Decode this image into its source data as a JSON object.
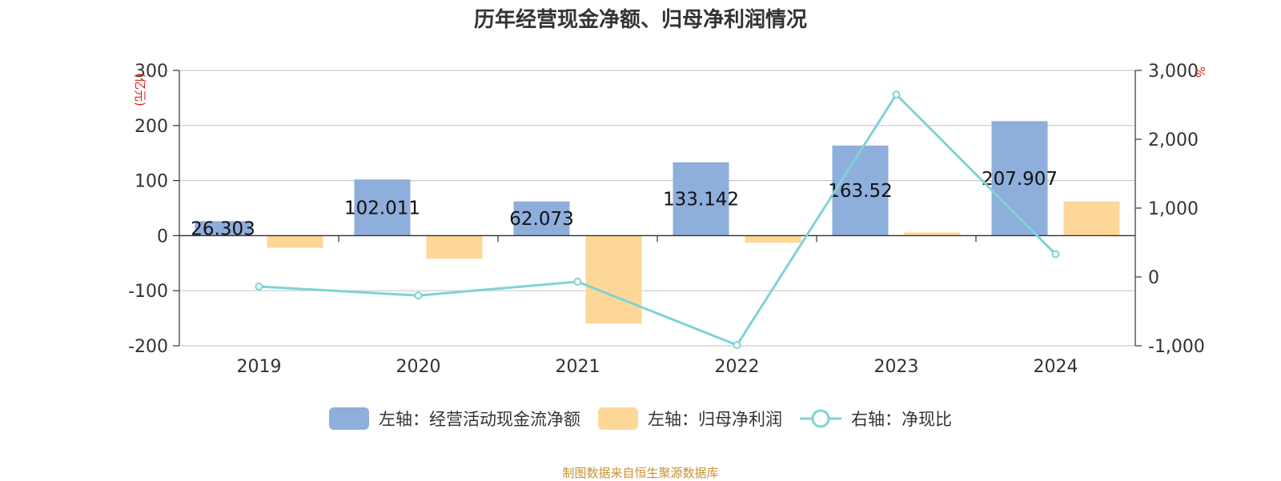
{
  "chart_data": {
    "type": "bar",
    "title": "历年经营现金净额、归母净利润情况",
    "categories": [
      "2019",
      "2020",
      "2021",
      "2022",
      "2023",
      "2024"
    ],
    "series": [
      {
        "name": "左轴：经营活动现金流净额",
        "axis": "left",
        "type": "bar",
        "color": "#8eaedb",
        "values": [
          26.303,
          102.011,
          62.073,
          133.142,
          163.52,
          207.907
        ],
        "labels": [
          "26.303",
          "102.011",
          "62.073",
          "133.142",
          "163.52",
          "207.907"
        ]
      },
      {
        "name": "左轴：归母净利润",
        "axis": "left",
        "type": "bar",
        "color": "#fdd797",
        "values": [
          -22,
          -42,
          -160,
          -13,
          6,
          62
        ]
      },
      {
        "name": "右轴：净现比",
        "axis": "right",
        "type": "line",
        "color": "#7fd3d6",
        "values": [
          -140,
          -270,
          -70,
          -990,
          2650,
          330
        ]
      }
    ],
    "left_axis": {
      "unit": "(亿元)",
      "ylim": [
        -200,
        300
      ],
      "ticks": [
        "300",
        "200",
        "100",
        "0",
        "-100",
        "-200"
      ]
    },
    "right_axis": {
      "unit": "%",
      "ylim": [
        -1000,
        3000
      ],
      "ticks": [
        "3,000",
        "2,000",
        "1,000",
        "0",
        "-1,000"
      ]
    },
    "grid": true,
    "legend_position": "bottom-center"
  },
  "source": "制图数据来自恒生聚源数据库"
}
